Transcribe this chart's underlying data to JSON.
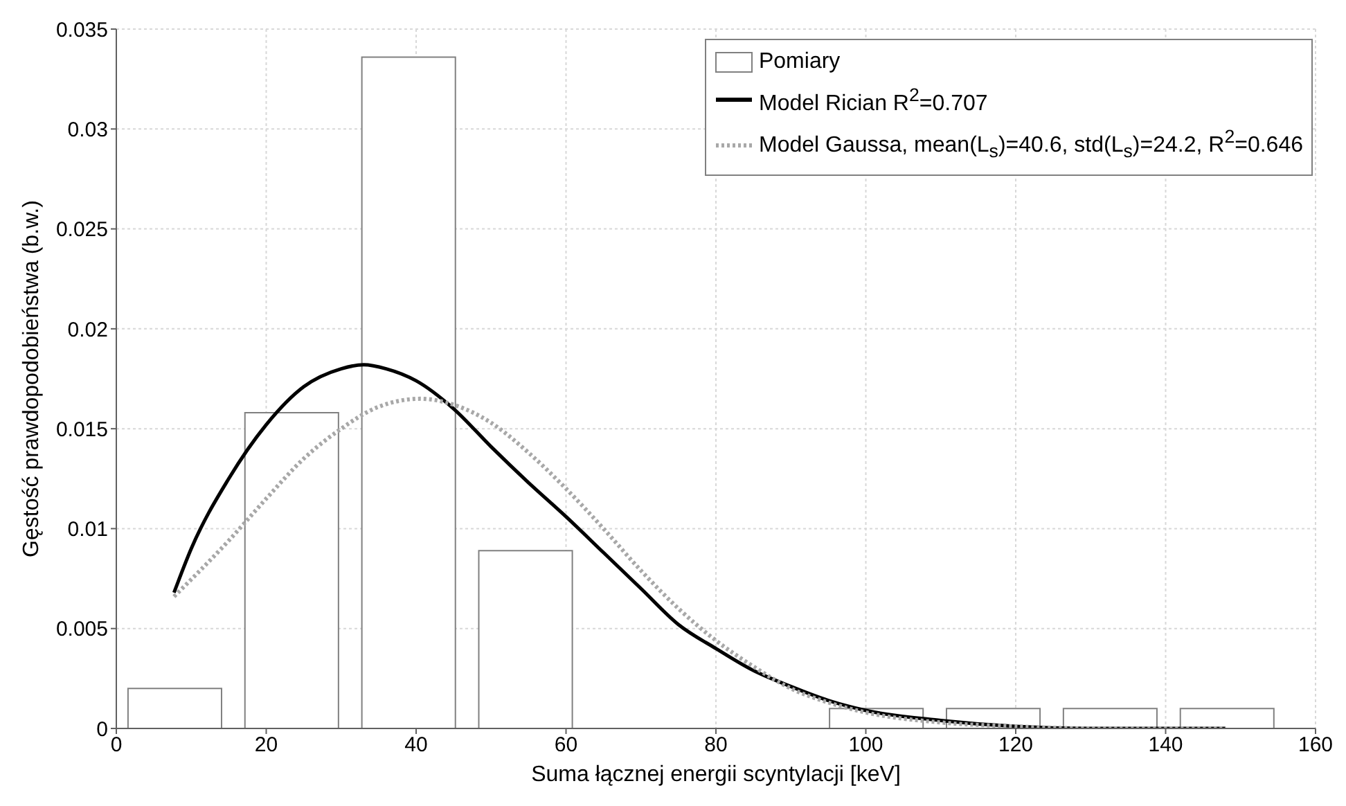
{
  "chart_data": {
    "type": "histogram",
    "xlabel": "Suma łącznej energii scyntylacji [keV]",
    "ylabel": "Gęstość prawdopodobieństwa (b.w.)",
    "bins": [
      0,
      15.6,
      31.2,
      46.8,
      62.4,
      78,
      93.6,
      109.2,
      124.8,
      140.4,
      156
    ],
    "series": [
      {
        "name": "Pomiary",
        "color": "#ffffff",
        "values": [
          0.002,
          0.0158,
          0.0336,
          0.0089,
          0,
          0,
          0.001,
          0.001,
          0.001,
          0.001
        ]
      },
      {
        "name": "Model Rician R$^{2}$=0.707",
        "type": "line",
        "color": "#000000",
        "line_style": "solid",
        "x": [
          7.7,
          10,
          15,
          20,
          25,
          30,
          33,
          36,
          40,
          45,
          50,
          55,
          60,
          65,
          70,
          75,
          80,
          85,
          90,
          95,
          100,
          110,
          120,
          130,
          148
        ],
        "values": [
          0.0068,
          0.009,
          0.0125,
          0.0152,
          0.0171,
          0.018,
          0.0182,
          0.018,
          0.0174,
          0.016,
          0.0141,
          0.0123,
          0.0106,
          0.0088,
          0.007,
          0.0052,
          0.004,
          0.0029,
          0.0021,
          0.0014,
          0.0009,
          0.0004,
          0.0001,
          0,
          0
        ]
      },
      {
        "name": "Model Gaussa, mean(L$_{s}$)=40.6, std(L$_{s}$)=24.2,  R$^{2}$=0.646",
        "type": "line",
        "color": "#a8a8a8",
        "line_style": "dotted",
        "x": [
          7.7,
          15,
          20,
          25,
          30,
          35,
          40.6,
          45,
          50,
          55,
          60,
          65,
          70,
          75,
          80,
          85,
          90,
          95,
          100,
          110,
          120,
          130,
          148
        ],
        "values": [
          0.0066,
          0.0094,
          0.0115,
          0.0135,
          0.015,
          0.0161,
          0.0165,
          0.0162,
          0.0153,
          0.0138,
          0.012,
          0.01,
          0.0079,
          0.006,
          0.0044,
          0.0031,
          0.002,
          0.0013,
          0.0008,
          0.0003,
          0.0001,
          0,
          0
        ]
      }
    ],
    "xlim": [
      0,
      160
    ],
    "xticks": [
      0,
      20,
      40,
      60,
      80,
      100,
      120,
      140,
      160
    ],
    "ylim": [
      0,
      0.035
    ],
    "yticks": [
      0,
      0.005,
      0.01,
      0.015,
      0.02,
      0.025,
      0.03,
      0.035
    ],
    "grid": true,
    "legend": "top right"
  }
}
